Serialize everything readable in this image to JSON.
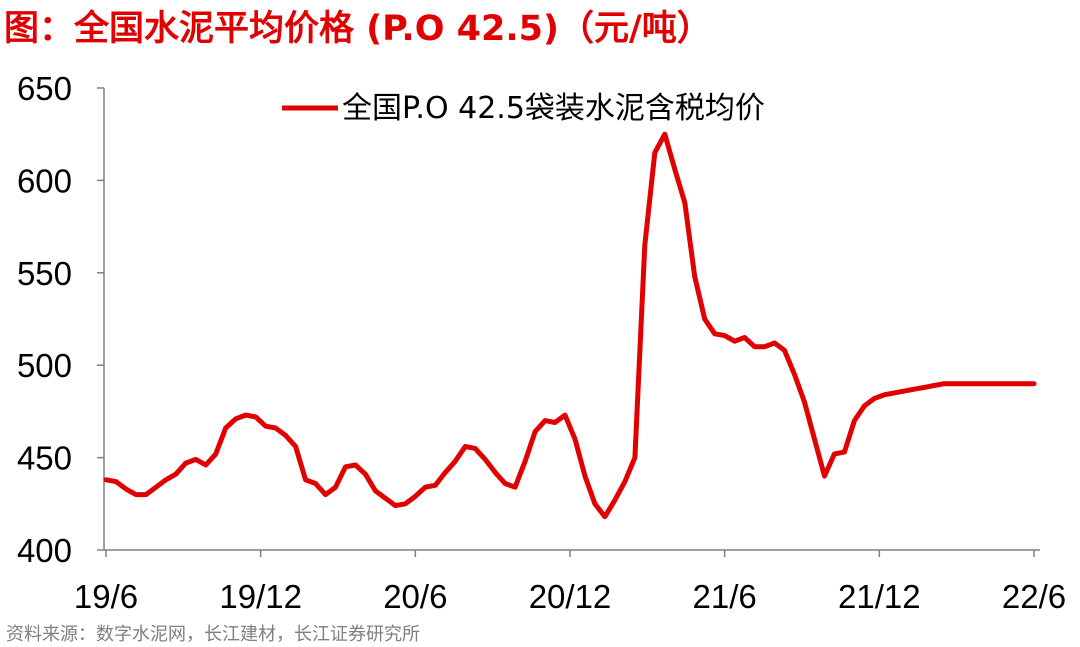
{
  "chart_data": {
    "type": "line",
    "title": "图：全国水泥平均价格 (P.O 42.5)（元/吨）",
    "source": "资料来源：数字水泥网，长江建材，长江证券研究所",
    "xlabel": "",
    "ylabel": "",
    "ylim": [
      400,
      650
    ],
    "yticks": [
      "400",
      "450",
      "500",
      "550",
      "600",
      "650"
    ],
    "xticks": [
      "19/6",
      "19/12",
      "20/6",
      "20/12",
      "21/6",
      "21/12",
      "22/6"
    ],
    "xlim": [
      "2019-06",
      "2022-06"
    ],
    "legend_position": "top-center",
    "line_color": "#e00000",
    "series": [
      {
        "name": "全国P.O 42.5袋装水泥含税均价",
        "x": [
          "2019-06",
          "2019-06",
          "2019-07",
          "2019-07",
          "2019-07",
          "2019-08",
          "2019-08",
          "2019-08",
          "2019-09",
          "2019-09",
          "2019-09",
          "2019-10",
          "2019-10",
          "2019-11",
          "2019-11",
          "2019-11",
          "2019-12",
          "2019-12",
          "2019-12",
          "2020-01",
          "2020-01",
          "2020-02",
          "2020-02",
          "2020-03",
          "2020-03",
          "2020-03",
          "2020-04",
          "2020-04",
          "2020-04",
          "2020-05",
          "2020-05",
          "2020-06",
          "2020-06",
          "2020-06",
          "2020-07",
          "2020-07",
          "2020-07",
          "2020-08",
          "2020-08",
          "2020-09",
          "2020-09",
          "2020-10",
          "2020-10",
          "2020-10",
          "2020-11",
          "2020-11",
          "2020-11",
          "2020-12",
          "2020-12",
          "2021-01",
          "2021-01",
          "2021-02",
          "2021-02",
          "2021-03",
          "2021-03",
          "2021-04",
          "2021-04",
          "2021-05",
          "2021-05",
          "2021-05",
          "2021-06",
          "2021-06",
          "2021-07",
          "2021-07",
          "2021-07",
          "2021-08",
          "2021-08",
          "2021-08",
          "2021-09",
          "2021-09",
          "2021-09",
          "2021-10",
          "2021-10",
          "2021-10",
          "2021-10",
          "2021-11",
          "2021-11",
          "2021-11",
          "2021-12",
          "2021-12",
          "2022-01",
          "2022-01",
          "2022-02",
          "2022-02",
          "2022-03",
          "2022-03",
          "2022-03",
          "2022-04",
          "2022-04",
          "2022-04",
          "2022-05",
          "2022-05",
          "2022-05",
          "2022-06"
        ],
        "y": [
          438,
          437,
          433,
          430,
          430,
          434,
          438,
          441,
          447,
          449,
          446,
          452,
          466,
          471,
          473,
          472,
          467,
          466,
          462,
          456,
          438,
          436,
          430,
          434,
          445,
          446,
          441,
          432,
          428,
          424,
          425,
          429,
          434,
          435,
          442,
          448,
          456,
          455,
          449,
          442,
          436,
          434,
          448,
          464,
          470,
          469,
          473,
          460,
          440,
          425,
          418,
          427,
          437,
          450,
          565,
          615,
          625,
          606,
          588,
          548,
          525,
          517,
          516,
          513,
          515,
          510,
          510,
          512,
          508,
          495,
          480,
          460,
          440,
          452,
          453,
          470,
          478,
          482,
          484,
          485,
          486,
          487,
          488,
          489,
          490,
          490,
          490,
          490,
          490,
          490,
          490,
          490,
          490,
          490
        ]
      }
    ]
  }
}
